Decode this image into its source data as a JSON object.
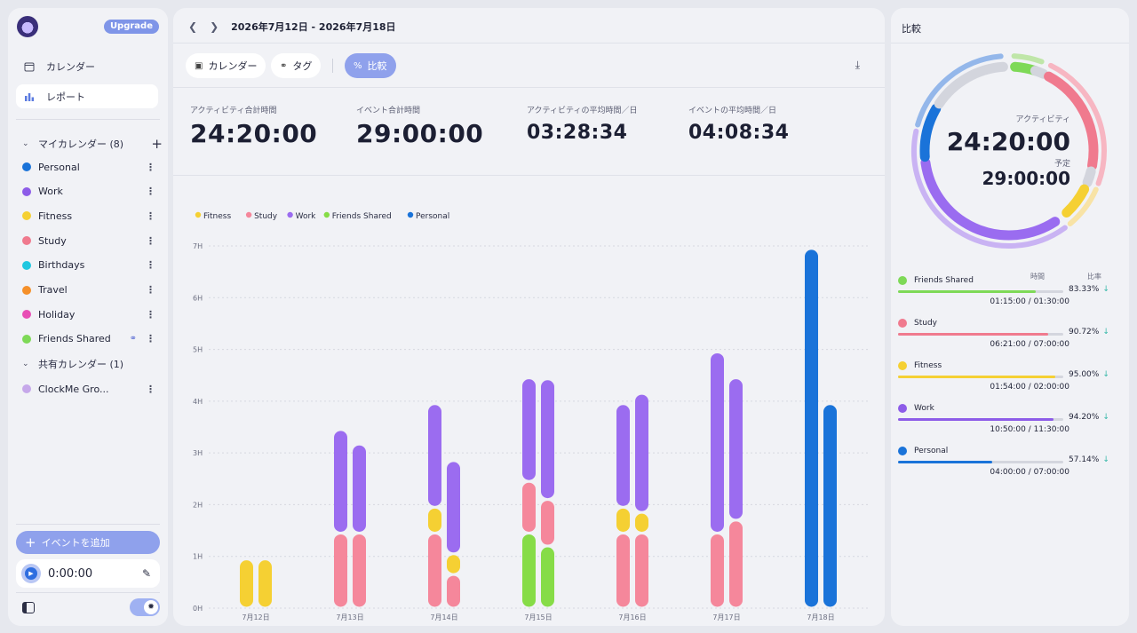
{
  "sidebar": {
    "upgrade_label": "Upgrade",
    "nav": [
      {
        "label": "カレンダー",
        "icon": "calendar-icon"
      },
      {
        "label": "レポート",
        "icon": "bar-chart-icon"
      }
    ],
    "my_calendars_label": "マイカレンダー (8)",
    "calendars": [
      {
        "name": "Personal",
        "color": "#1a73d9"
      },
      {
        "name": "Work",
        "color": "#8d5ce8"
      },
      {
        "name": "Fitness",
        "color": "#f5d033"
      },
      {
        "name": "Study",
        "color": "#f07a8e"
      },
      {
        "name": "Birthdays",
        "color": "#1fc7e0"
      },
      {
        "name": "Travel",
        "color": "#f5902a"
      },
      {
        "name": "Holiday",
        "color": "#e84fb5"
      },
      {
        "name": "Friends Shared",
        "color": "#7ed957"
      }
    ],
    "shared_calendars_label": "共有カレンダー (1)",
    "shared_calendars": [
      {
        "name": "ClockMe Gro...",
        "color": "#c6a8ea"
      }
    ],
    "add_event_label": "イベントを追加",
    "timer_value": "0:00:00"
  },
  "main": {
    "date_range": "2026年7月12日 - 2026年7月18日",
    "tabs": [
      {
        "label": "カレンダー",
        "icon": "calendar-icon"
      },
      {
        "label": "タグ",
        "icon": "tag-icon"
      },
      {
        "label": "比較",
        "icon": "percent-icon"
      }
    ],
    "stats": [
      {
        "label": "アクティビティ合計時間",
        "value": "24:20:00"
      },
      {
        "label": "イベント合計時間",
        "value": "29:00:00"
      },
      {
        "label": "アクティビティの平均時間／日",
        "value": "03:28:34"
      },
      {
        "label": "イベントの平均時間／日",
        "value": "04:08:34"
      }
    ]
  },
  "chart_data": {
    "type": "bar",
    "stacked": true,
    "legend_position": "top-left",
    "legend": [
      {
        "name": "Fitness",
        "color": "#f5d033"
      },
      {
        "name": "Study",
        "color": "#f5879b"
      },
      {
        "name": "Work",
        "color": "#9b6cf0"
      },
      {
        "name": "Friends Shared",
        "color": "#86dc47"
      },
      {
        "name": "Personal",
        "color": "#1a73d9"
      }
    ],
    "y_ticks": [
      "0H",
      "1H",
      "2H",
      "3H",
      "4H",
      "5H",
      "6H",
      "7H"
    ],
    "ylim": [
      0,
      7
    ],
    "grid": true,
    "categories": [
      "7月12日",
      "7月13日",
      "7月14日",
      "7月15日",
      "7月16日",
      "7月17日",
      "7月18日"
    ],
    "bars": [
      [
        {
          "segments": [
            [
              "Fitness",
              0.95
            ]
          ]
        },
        {
          "segments": [
            [
              "Fitness",
              0.95
            ]
          ]
        }
      ],
      [
        {
          "segments": [
            [
              "Study",
              1.45
            ],
            [
              "Work",
              2.0
            ]
          ]
        },
        {
          "segments": [
            [
              "Study",
              1.45
            ],
            [
              "Work",
              1.72
            ]
          ]
        }
      ],
      [
        {
          "segments": [
            [
              "Study",
              1.45
            ],
            [
              "Fitness",
              0.5
            ],
            [
              "Work",
              2.0
            ]
          ]
        },
        {
          "segments": [
            [
              "Study",
              0.65
            ],
            [
              "Fitness",
              0.4
            ],
            [
              "Work",
              1.8
            ]
          ]
        }
      ],
      [
        {
          "segments": [
            [
              "Friends Shared",
              1.45
            ],
            [
              "Study",
              1.0
            ],
            [
              "Work",
              2.0
            ]
          ]
        },
        {
          "segments": [
            [
              "Friends Shared",
              1.2
            ],
            [
              "Study",
              0.9
            ],
            [
              "Work",
              2.33
            ]
          ]
        }
      ],
      [
        {
          "segments": [
            [
              "Study",
              1.45
            ],
            [
              "Fitness",
              0.5
            ],
            [
              "Work",
              2.0
            ]
          ]
        },
        {
          "segments": [
            [
              "Study",
              1.45
            ],
            [
              "Fitness",
              0.4
            ],
            [
              "Work",
              2.3
            ]
          ]
        }
      ],
      [
        {
          "segments": [
            [
              "Study",
              1.45
            ],
            [
              "Work",
              3.5
            ]
          ]
        },
        {
          "segments": [
            [
              "Study",
              1.7
            ],
            [
              "Work",
              2.75
            ]
          ]
        }
      ],
      [
        {
          "segments": [
            [
              "Personal",
              6.95
            ]
          ]
        },
        {
          "segments": [
            [
              "Personal",
              3.95
            ]
          ]
        }
      ]
    ]
  },
  "right": {
    "title": "比較",
    "donut_label_activity": "アクティビティ",
    "donut_value_activity": "24:20:00",
    "donut_label_planned": "予定",
    "donut_value_planned": "29:00:00",
    "col_time": "時間",
    "col_ratio": "比率",
    "rows": [
      {
        "name": "Friends Shared",
        "color": "#7ed957",
        "ratio": 0.8333,
        "pct": "83.33%",
        "times": "01:15:00 / 01:30:00"
      },
      {
        "name": "Study",
        "color": "#f07a8e",
        "ratio": 0.9072,
        "pct": "90.72%",
        "times": "06:21:00 / 07:00:00"
      },
      {
        "name": "Fitness",
        "color": "#f5d033",
        "ratio": 0.95,
        "pct": "95.00%",
        "times": "01:54:00 / 02:00:00"
      },
      {
        "name": "Work",
        "color": "#8d5ce8",
        "ratio": 0.942,
        "pct": "94.20%",
        "times": "10:50:00 / 11:30:00"
      },
      {
        "name": "Personal",
        "color": "#1a73d9",
        "ratio": 0.5714,
        "pct": "57.14%",
        "times": "04:00:00 / 07:00:00"
      }
    ],
    "trend_icon": "arrow-down-icon"
  }
}
